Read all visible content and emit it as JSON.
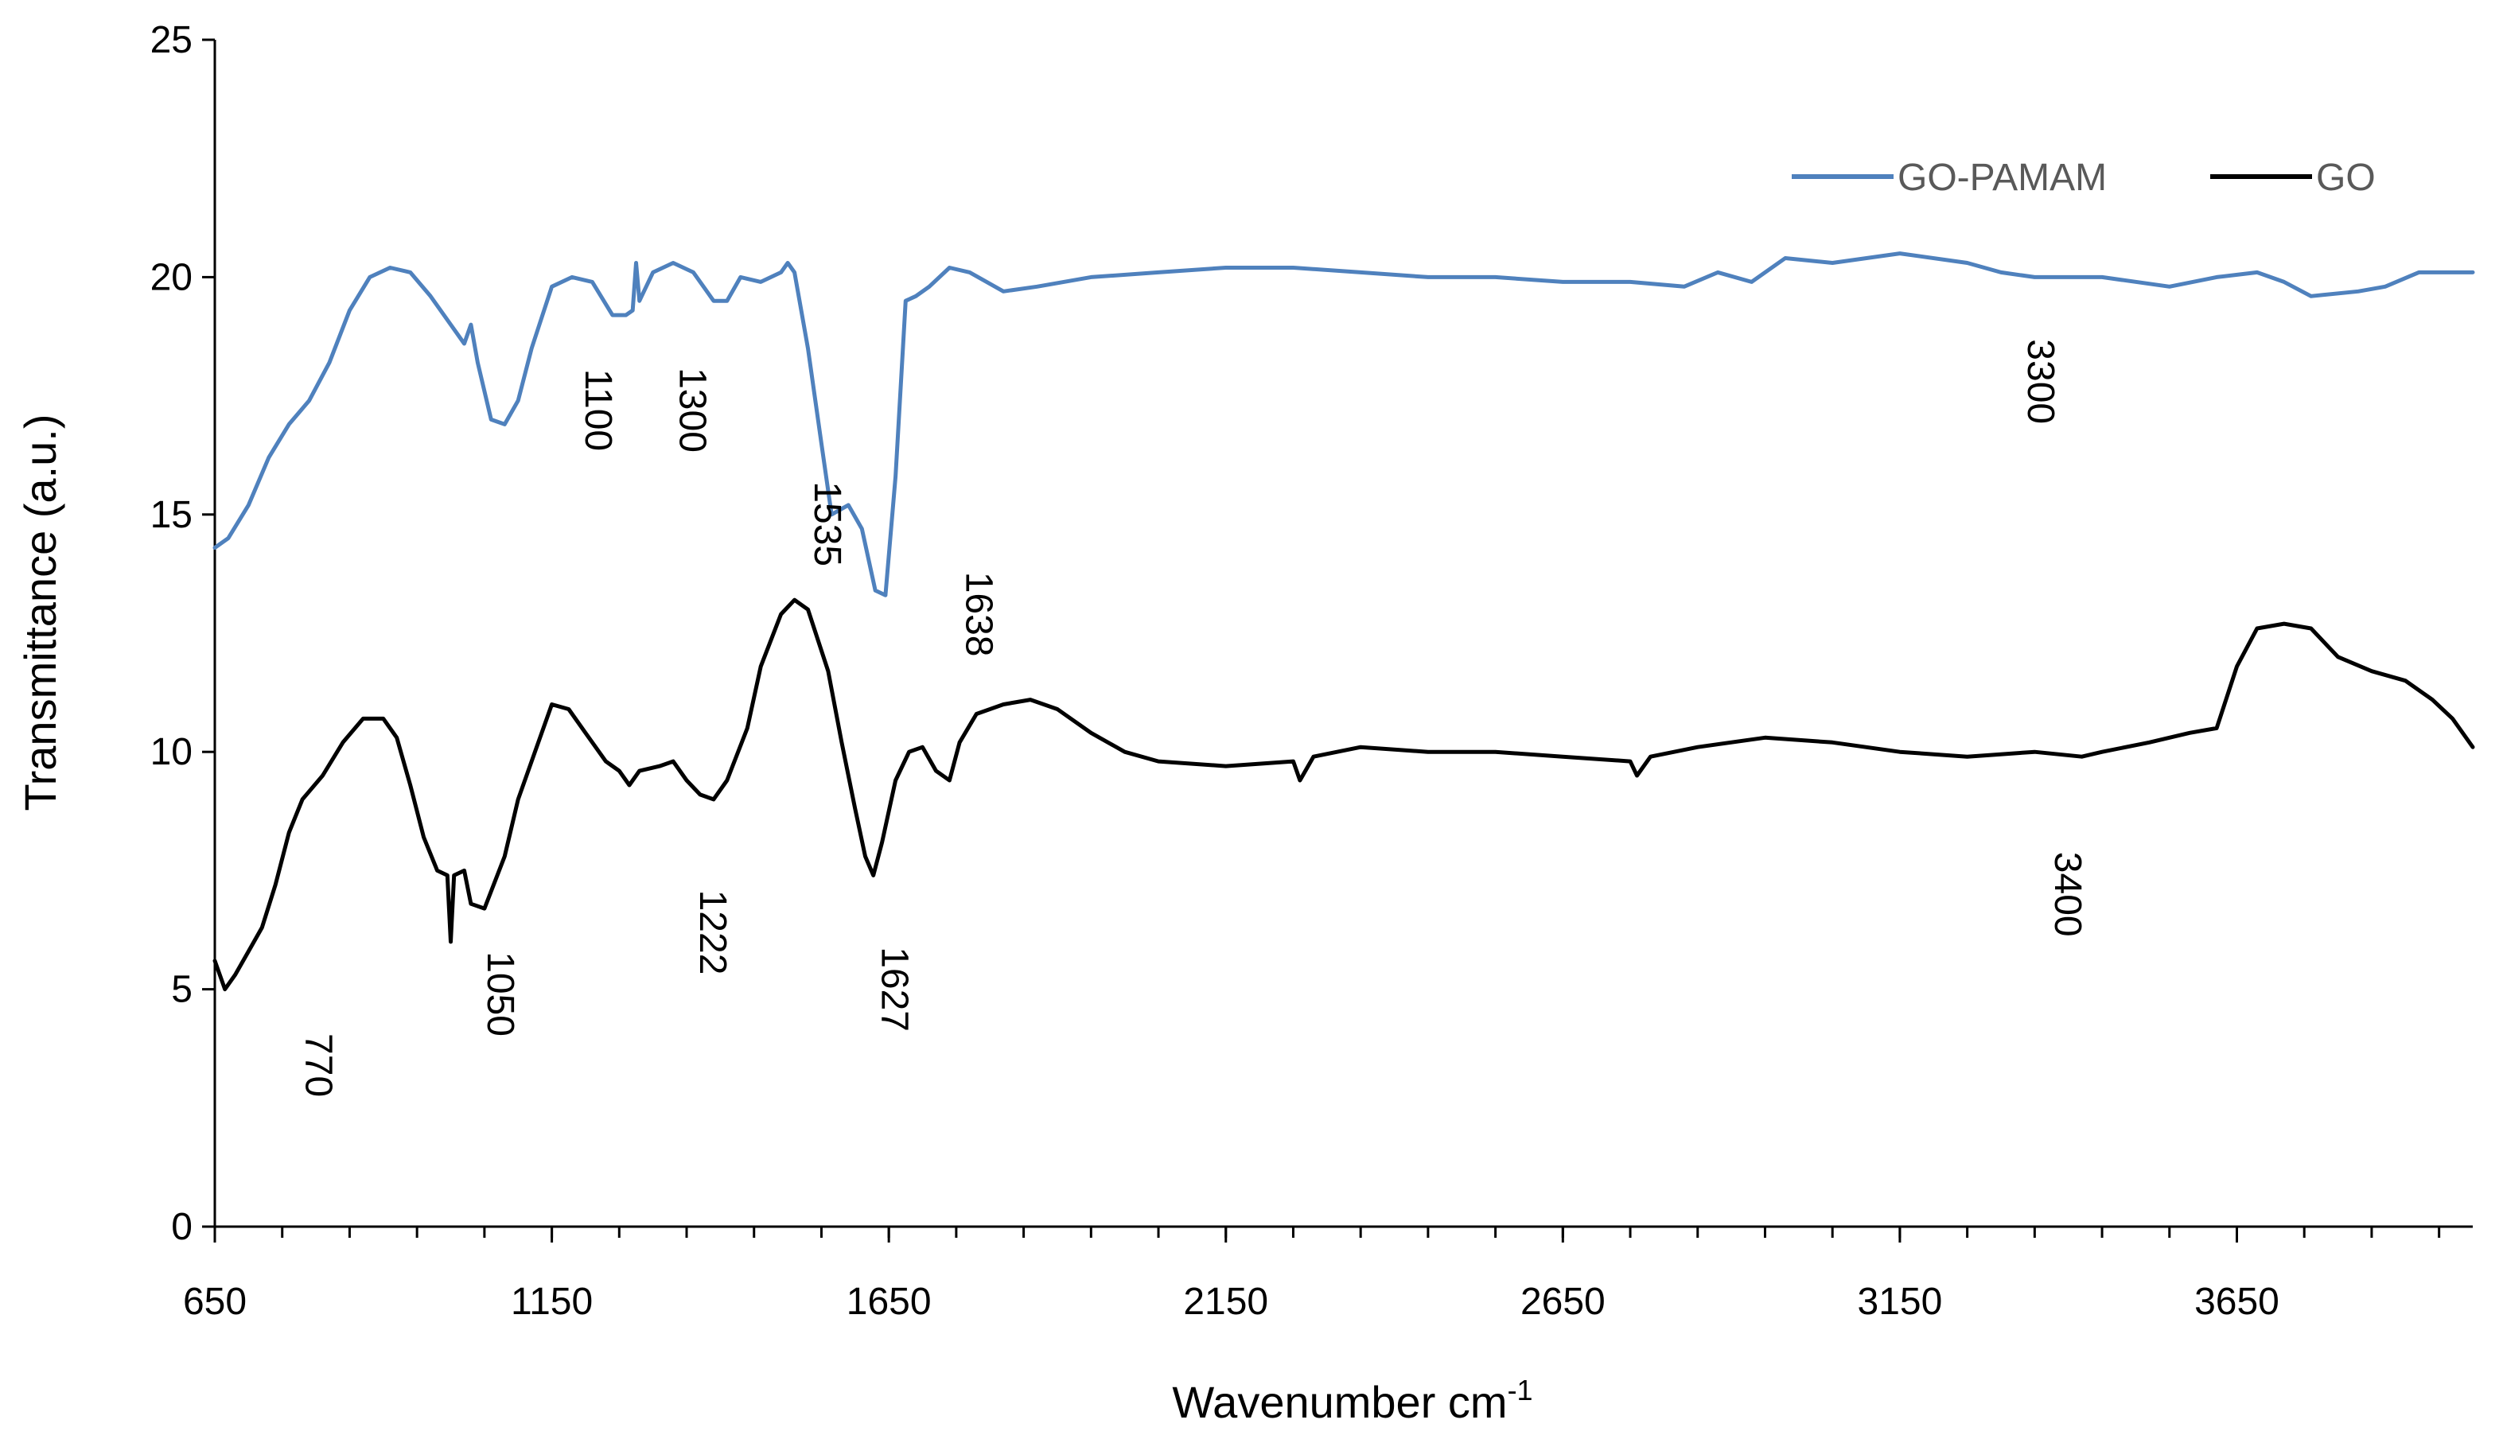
{
  "chart_data": {
    "type": "line",
    "title": "",
    "xlabel": "Wavenumber cm",
    "xlabel_superscript": "-1",
    "ylabel": "Transmittance (a.u.)",
    "xlim": [
      650,
      4000
    ],
    "ylim": [
      0,
      25
    ],
    "x_ticks": [
      650,
      1150,
      1650,
      2150,
      2650,
      3150,
      3650
    ],
    "x_minor_step": 100,
    "y_ticks": [
      0,
      5,
      10,
      15,
      20,
      25
    ],
    "grid": false,
    "legend_position": "top-right",
    "series": [
      {
        "name": "GO-PAMAM",
        "color": "#4f81bd",
        "points": [
          [
            650,
            14.3
          ],
          [
            670,
            14.5
          ],
          [
            700,
            15.2
          ],
          [
            730,
            16.2
          ],
          [
            760,
            16.9
          ],
          [
            790,
            17.4
          ],
          [
            820,
            18.2
          ],
          [
            850,
            19.3
          ],
          [
            880,
            20.0
          ],
          [
            910,
            20.2
          ],
          [
            940,
            20.1
          ],
          [
            970,
            19.6
          ],
          [
            1000,
            19.0
          ],
          [
            1020,
            18.6
          ],
          [
            1030,
            19.0
          ],
          [
            1040,
            18.2
          ],
          [
            1060,
            17.0
          ],
          [
            1080,
            16.9
          ],
          [
            1100,
            17.4
          ],
          [
            1120,
            18.5
          ],
          [
            1150,
            19.8
          ],
          [
            1180,
            20.0
          ],
          [
            1210,
            19.9
          ],
          [
            1240,
            19.2
          ],
          [
            1260,
            19.2
          ],
          [
            1270,
            19.3
          ],
          [
            1275,
            20.3
          ],
          [
            1280,
            19.5
          ],
          [
            1300,
            20.1
          ],
          [
            1330,
            20.3
          ],
          [
            1360,
            20.1
          ],
          [
            1390,
            19.5
          ],
          [
            1410,
            19.5
          ],
          [
            1430,
            20.0
          ],
          [
            1460,
            19.9
          ],
          [
            1490,
            20.1
          ],
          [
            1500,
            20.3
          ],
          [
            1510,
            20.1
          ],
          [
            1530,
            18.5
          ],
          [
            1550,
            16.5
          ],
          [
            1565,
            15.0
          ],
          [
            1590,
            15.2
          ],
          [
            1610,
            14.7
          ],
          [
            1630,
            13.4
          ],
          [
            1645,
            13.3
          ],
          [
            1660,
            15.8
          ],
          [
            1675,
            19.5
          ],
          [
            1690,
            19.6
          ],
          [
            1710,
            19.8
          ],
          [
            1740,
            20.2
          ],
          [
            1770,
            20.1
          ],
          [
            1820,
            19.7
          ],
          [
            1870,
            19.8
          ],
          [
            1950,
            20.0
          ],
          [
            2050,
            20.1
          ],
          [
            2150,
            20.2
          ],
          [
            2250,
            20.2
          ],
          [
            2350,
            20.1
          ],
          [
            2450,
            20.0
          ],
          [
            2550,
            20.0
          ],
          [
            2650,
            19.9
          ],
          [
            2750,
            19.9
          ],
          [
            2830,
            19.8
          ],
          [
            2880,
            20.1
          ],
          [
            2930,
            19.9
          ],
          [
            2980,
            20.4
          ],
          [
            3050,
            20.3
          ],
          [
            3150,
            20.5
          ],
          [
            3250,
            20.3
          ],
          [
            3300,
            20.1
          ],
          [
            3350,
            20.0
          ],
          [
            3450,
            20.0
          ],
          [
            3550,
            19.8
          ],
          [
            3620,
            20.0
          ],
          [
            3680,
            20.1
          ],
          [
            3720,
            19.9
          ],
          [
            3760,
            19.6
          ],
          [
            3830,
            19.7
          ],
          [
            3870,
            19.8
          ],
          [
            3920,
            20.1
          ],
          [
            4000,
            20.1
          ]
        ]
      },
      {
        "name": "GO",
        "color": "#000000",
        "points": [
          [
            650,
            5.6
          ],
          [
            665,
            5.0
          ],
          [
            680,
            5.3
          ],
          [
            700,
            5.8
          ],
          [
            720,
            6.3
          ],
          [
            740,
            7.2
          ],
          [
            760,
            8.3
          ],
          [
            780,
            9.0
          ],
          [
            810,
            9.5
          ],
          [
            840,
            10.2
          ],
          [
            870,
            10.7
          ],
          [
            900,
            10.7
          ],
          [
            920,
            10.3
          ],
          [
            940,
            9.3
          ],
          [
            960,
            8.2
          ],
          [
            980,
            7.5
          ],
          [
            995,
            7.4
          ],
          [
            1000,
            6.0
          ],
          [
            1005,
            7.4
          ],
          [
            1020,
            7.5
          ],
          [
            1030,
            6.8
          ],
          [
            1050,
            6.7
          ],
          [
            1080,
            7.8
          ],
          [
            1100,
            9.0
          ],
          [
            1130,
            10.2
          ],
          [
            1150,
            11.0
          ],
          [
            1175,
            10.9
          ],
          [
            1200,
            10.4
          ],
          [
            1230,
            9.8
          ],
          [
            1250,
            9.6
          ],
          [
            1265,
            9.3
          ],
          [
            1280,
            9.6
          ],
          [
            1310,
            9.7
          ],
          [
            1330,
            9.8
          ],
          [
            1350,
            9.4
          ],
          [
            1370,
            9.1
          ],
          [
            1390,
            9.0
          ],
          [
            1410,
            9.4
          ],
          [
            1440,
            10.5
          ],
          [
            1460,
            11.8
          ],
          [
            1490,
            12.9
          ],
          [
            1510,
            13.2
          ],
          [
            1530,
            13.0
          ],
          [
            1560,
            11.7
          ],
          [
            1580,
            10.2
          ],
          [
            1600,
            8.8
          ],
          [
            1615,
            7.8
          ],
          [
            1627,
            7.4
          ],
          [
            1640,
            8.1
          ],
          [
            1660,
            9.4
          ],
          [
            1680,
            10.0
          ],
          [
            1700,
            10.1
          ],
          [
            1720,
            9.6
          ],
          [
            1740,
            9.4
          ],
          [
            1755,
            10.2
          ],
          [
            1780,
            10.8
          ],
          [
            1820,
            11.0
          ],
          [
            1860,
            11.1
          ],
          [
            1900,
            10.9
          ],
          [
            1950,
            10.4
          ],
          [
            2000,
            10.0
          ],
          [
            2050,
            9.8
          ],
          [
            2150,
            9.7
          ],
          [
            2250,
            9.8
          ],
          [
            2260,
            9.4
          ],
          [
            2280,
            9.9
          ],
          [
            2350,
            10.1
          ],
          [
            2450,
            10.0
          ],
          [
            2550,
            10.0
          ],
          [
            2650,
            9.9
          ],
          [
            2750,
            9.8
          ],
          [
            2760,
            9.5
          ],
          [
            2780,
            9.9
          ],
          [
            2850,
            10.1
          ],
          [
            2950,
            10.3
          ],
          [
            3050,
            10.2
          ],
          [
            3150,
            10.0
          ],
          [
            3250,
            9.9
          ],
          [
            3350,
            10.0
          ],
          [
            3420,
            9.9
          ],
          [
            3450,
            10.0
          ],
          [
            3520,
            10.2
          ],
          [
            3580,
            10.4
          ],
          [
            3620,
            10.5
          ],
          [
            3650,
            11.8
          ],
          [
            3680,
            12.6
          ],
          [
            3720,
            12.7
          ],
          [
            3760,
            12.6
          ],
          [
            3800,
            12.0
          ],
          [
            3850,
            11.7
          ],
          [
            3900,
            11.5
          ],
          [
            3940,
            11.1
          ],
          [
            3970,
            10.7
          ],
          [
            4000,
            10.1
          ]
        ]
      }
    ],
    "annotations": [
      {
        "text": "770",
        "x": 785,
        "y": 3.4
      },
      {
        "text": "1050",
        "x": 1055,
        "y": 4.9
      },
      {
        "text": "1100",
        "x": 1200,
        "y": 17.2
      },
      {
        "text": "1300",
        "x": 1340,
        "y": 17.2
      },
      {
        "text": "1222",
        "x": 1370,
        "y": 6.2
      },
      {
        "text": "1535",
        "x": 1540,
        "y": 14.8
      },
      {
        "text": "1627",
        "x": 1640,
        "y": 5.0
      },
      {
        "text": "1638",
        "x": 1765,
        "y": 12.9
      },
      {
        "text": "3300",
        "x": 3340,
        "y": 17.8
      },
      {
        "text": "3400",
        "x": 3380,
        "y": 7.0
      }
    ]
  }
}
